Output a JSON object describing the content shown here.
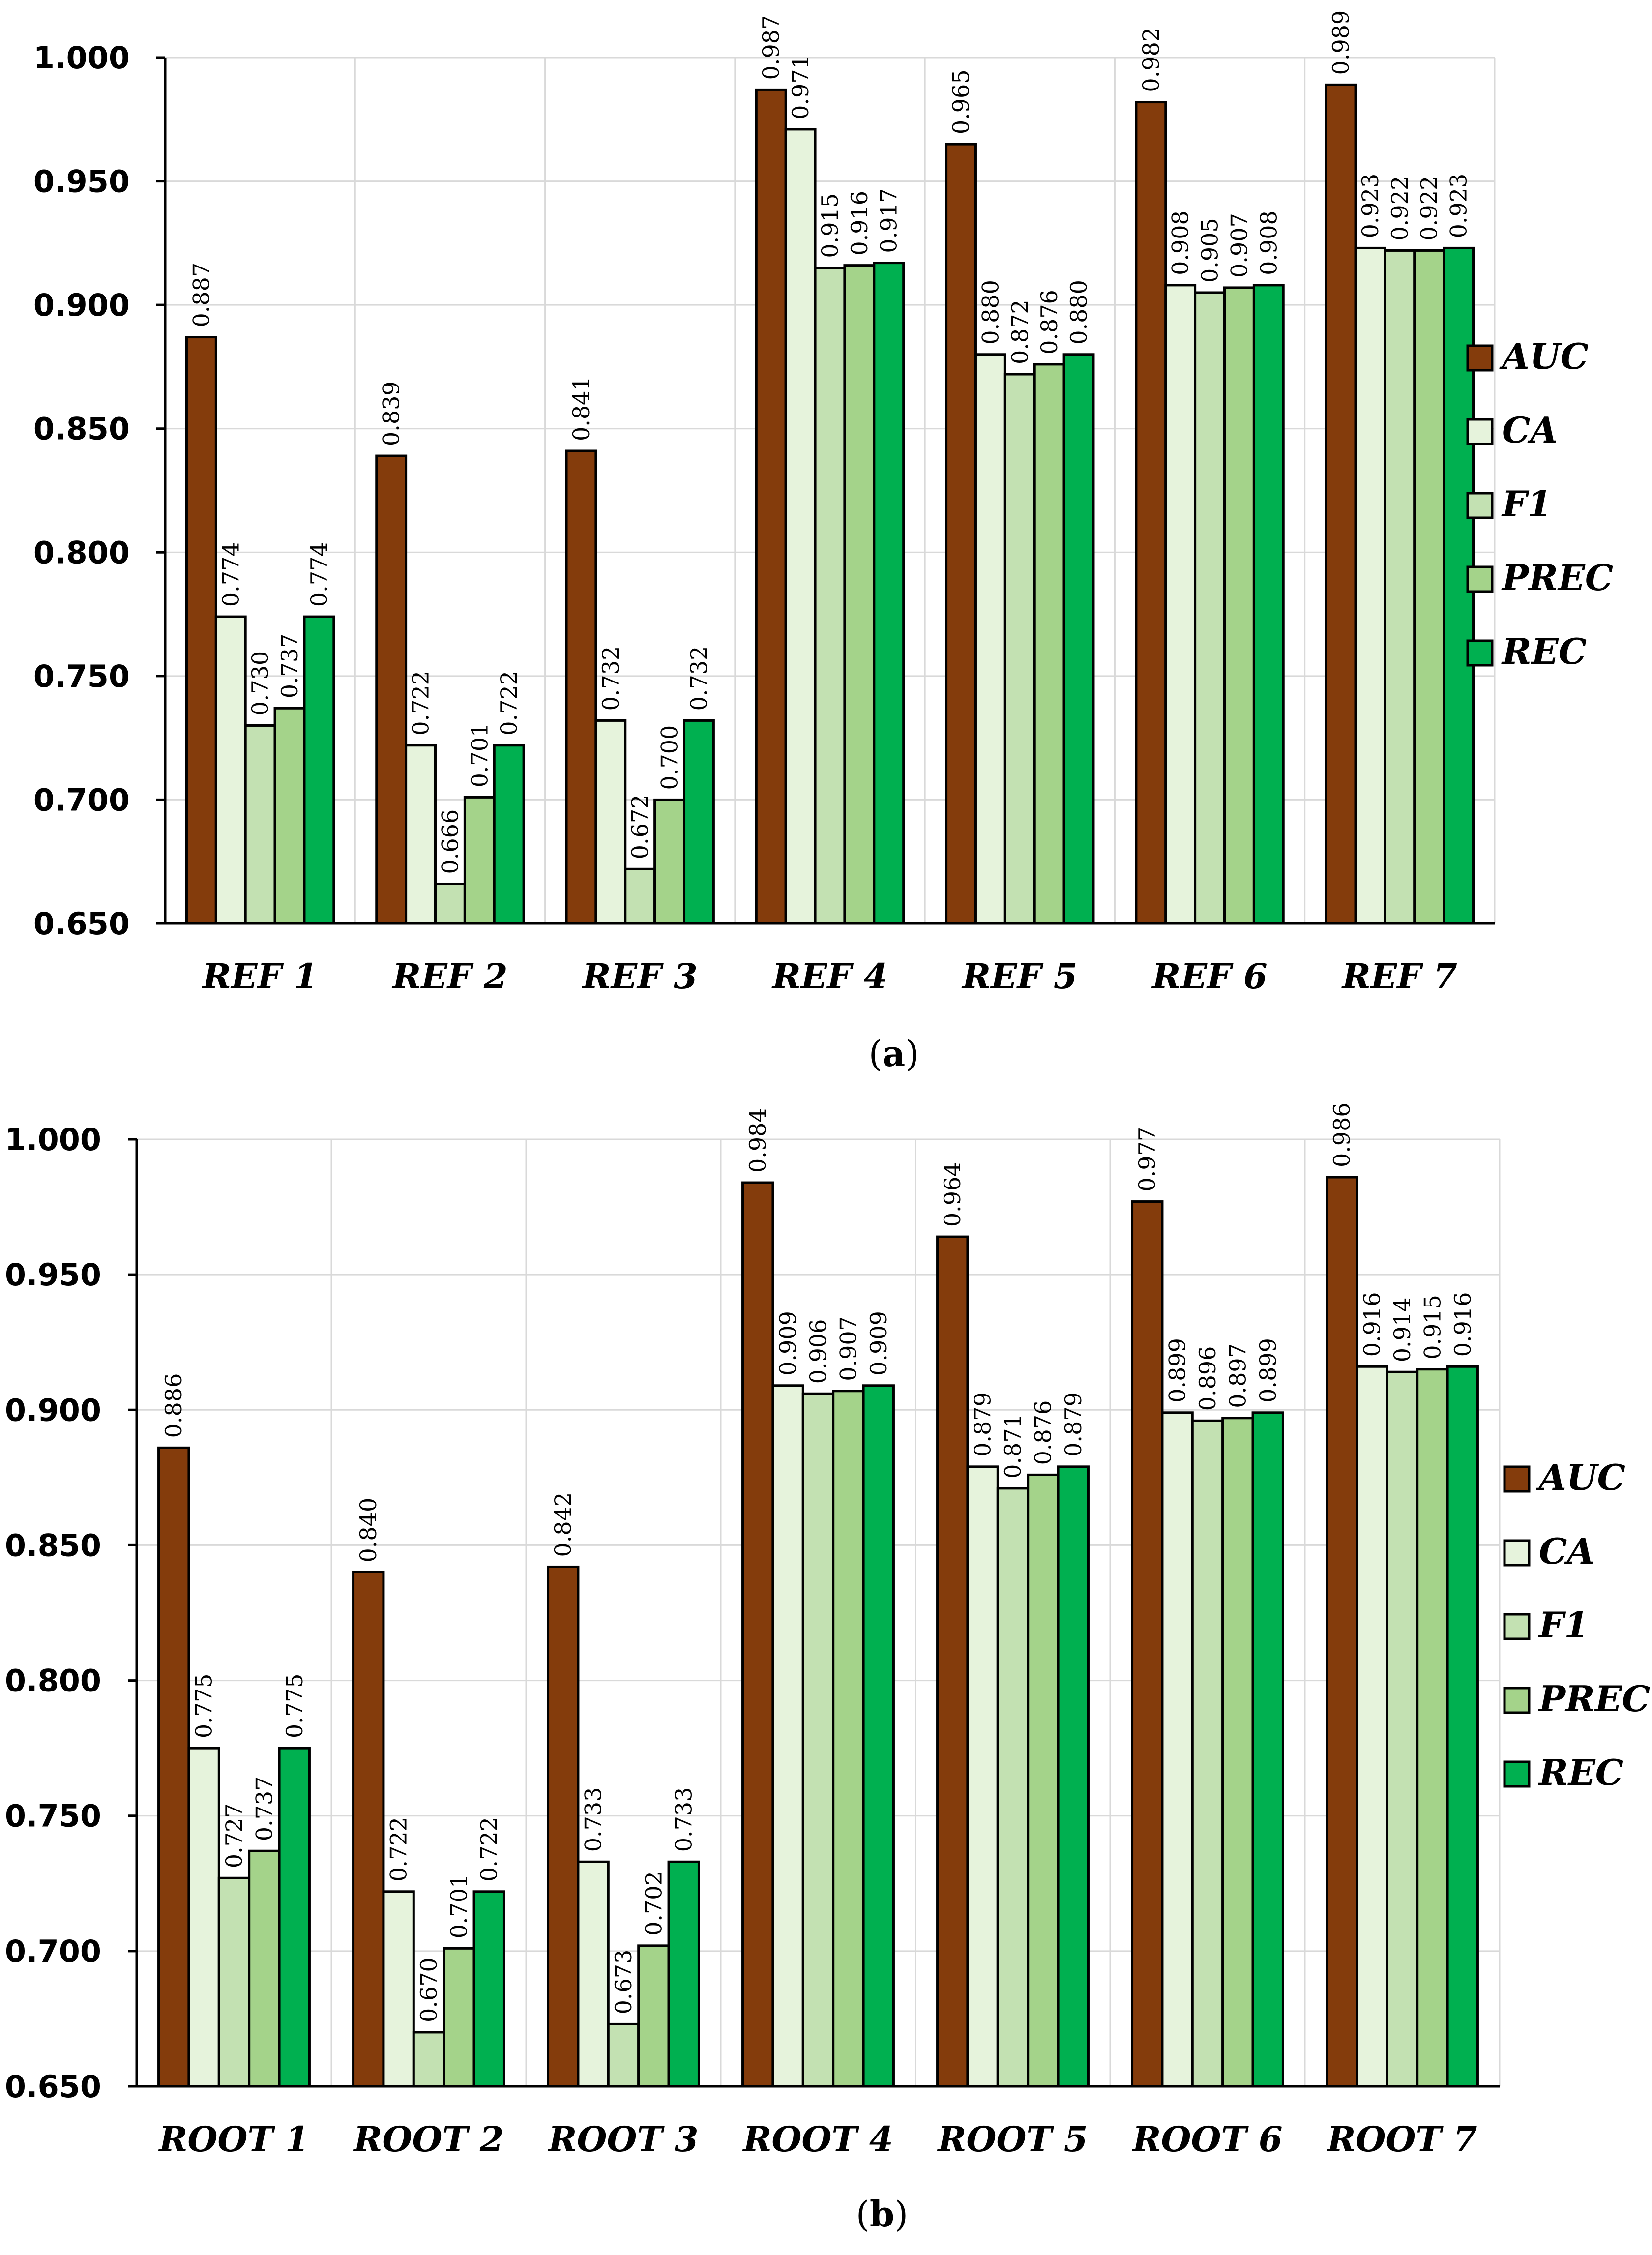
{
  "colors": {
    "AUC": "#843C0C",
    "CA": "#E6F3DC",
    "F1": "#C3E1B2",
    "PREC": "#A4D38A",
    "REC": "#00B050",
    "grid": "#D9D9D9"
  },
  "chart_data": [
    {
      "type": "bar",
      "panel_label": "a",
      "categories": [
        "REF 1",
        "REF 2",
        "REF 3",
        "REF 4",
        "REF 5",
        "REF 6",
        "REF 7"
      ],
      "ylim": [
        0.65,
        1.0
      ],
      "yticks": [
        "0.650",
        "0.700",
        "0.750",
        "0.800",
        "0.850",
        "0.900",
        "0.950",
        "1.000"
      ],
      "grid": true,
      "legend_position": "right",
      "series": [
        {
          "name": "AUC",
          "values": [
            0.887,
            0.839,
            0.841,
            0.987,
            0.965,
            0.982,
            0.989
          ]
        },
        {
          "name": "CA",
          "values": [
            0.774,
            0.722,
            0.732,
            0.971,
            0.88,
            0.908,
            0.923
          ]
        },
        {
          "name": "F1",
          "values": [
            0.73,
            0.666,
            0.672,
            0.915,
            0.872,
            0.905,
            0.922
          ]
        },
        {
          "name": "PREC",
          "values": [
            0.737,
            0.701,
            0.7,
            0.916,
            0.876,
            0.907,
            0.922
          ]
        },
        {
          "name": "REC",
          "values": [
            0.774,
            0.722,
            0.732,
            0.917,
            0.88,
            0.908,
            0.923
          ]
        }
      ]
    },
    {
      "type": "bar",
      "panel_label": "b",
      "categories": [
        "ROOT 1",
        "ROOT 2",
        "ROOT 3",
        "ROOT 4",
        "ROOT 5",
        "ROOT 6",
        "ROOT 7"
      ],
      "ylim": [
        0.65,
        1.0
      ],
      "yticks": [
        "0.650",
        "0.700",
        "0.750",
        "0.800",
        "0.850",
        "0.900",
        "0.950",
        "1.000"
      ],
      "grid": true,
      "legend_position": "right",
      "series": [
        {
          "name": "AUC",
          "values": [
            0.886,
            0.84,
            0.842,
            0.984,
            0.964,
            0.977,
            0.986
          ]
        },
        {
          "name": "CA",
          "values": [
            0.775,
            0.722,
            0.733,
            0.909,
            0.879,
            0.899,
            0.916
          ]
        },
        {
          "name": "F1",
          "values": [
            0.727,
            0.67,
            0.673,
            0.906,
            0.871,
            0.896,
            0.914
          ]
        },
        {
          "name": "PREC",
          "values": [
            0.737,
            0.701,
            0.702,
            0.907,
            0.876,
            0.897,
            0.915
          ]
        },
        {
          "name": "REC",
          "values": [
            0.775,
            0.722,
            0.733,
            0.909,
            0.879,
            0.899,
            0.916
          ]
        }
      ]
    }
  ]
}
